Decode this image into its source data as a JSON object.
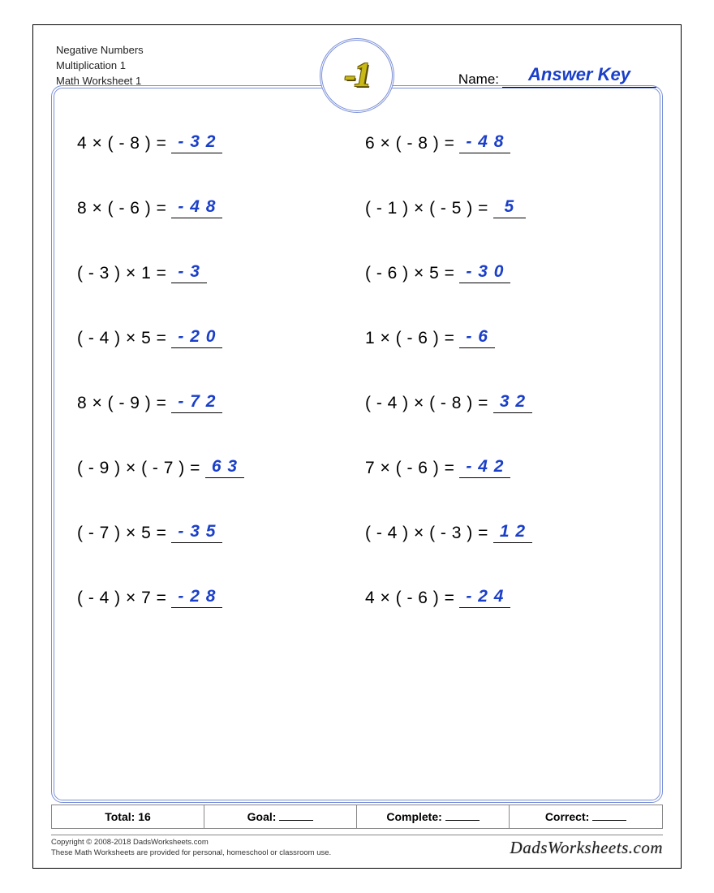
{
  "header": {
    "line1": "Negative Numbers",
    "line2": "Multiplication 1",
    "line3": "Math Worksheet 1"
  },
  "name_label": "Name:",
  "name_value": "Answer Key",
  "badge_text": "-1",
  "colors": {
    "answer": "#1a3fc9",
    "border": "#7a8fd8",
    "badge_fill": "#c9b916",
    "badge_shadow": "#6b5c00",
    "page_bg": "#ffffff",
    "text": "#000000"
  },
  "problems": [
    {
      "eq": "4 × ( - 8 ) =",
      "ans": "- 3 2"
    },
    {
      "eq": "6 × ( - 8 ) =",
      "ans": "- 4 8"
    },
    {
      "eq": "8 × ( - 6 ) =",
      "ans": "- 4 8"
    },
    {
      "eq": "( - 1 ) × ( - 5 ) =",
      "ans": "5"
    },
    {
      "eq": "( - 3 ) × 1 =",
      "ans": "- 3"
    },
    {
      "eq": "( - 6 ) × 5 =",
      "ans": "- 3 0"
    },
    {
      "eq": "( - 4 ) × 5 =",
      "ans": "- 2 0"
    },
    {
      "eq": "1 × ( - 6 ) =",
      "ans": "- 6"
    },
    {
      "eq": "8 × ( - 9 ) =",
      "ans": "- 7 2"
    },
    {
      "eq": "( - 4 ) × ( - 8 ) =",
      "ans": "3 2"
    },
    {
      "eq": "( - 9 ) × ( - 7 ) =",
      "ans": "6 3"
    },
    {
      "eq": "7 × ( - 6 ) =",
      "ans": "- 4 2"
    },
    {
      "eq": "( - 7 ) × 5 =",
      "ans": "- 3 5"
    },
    {
      "eq": "( - 4 ) × ( - 3 ) =",
      "ans": "1 2"
    },
    {
      "eq": "( - 4 ) × 7 =",
      "ans": "- 2 8"
    },
    {
      "eq": "4 × ( - 6 ) =",
      "ans": "- 2 4"
    }
  ],
  "score": {
    "total_label": "Total: 16",
    "goal_label": "Goal:",
    "complete_label": "Complete:",
    "correct_label": "Correct:"
  },
  "footer": {
    "copyright": "Copyright © 2008-2018 DadsWorksheets.com",
    "note": "These Math Worksheets are provided for personal, homeschool or classroom use.",
    "brand": "DadsWorksheets.com"
  }
}
